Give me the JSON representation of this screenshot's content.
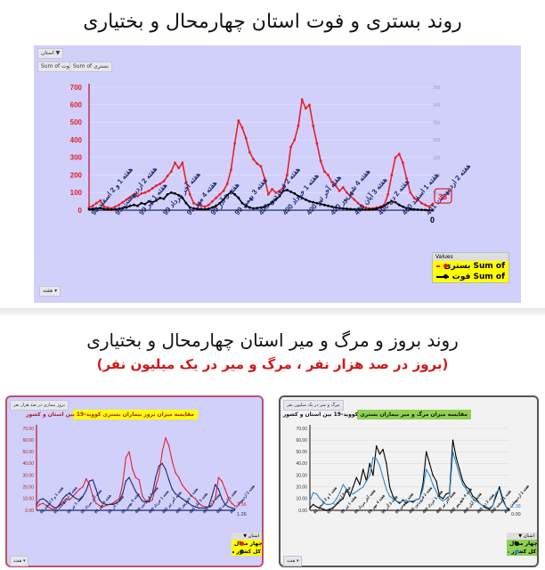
{
  "page": {
    "title_top": "روند بستری و فوت استان چهارمحال و بختیاری",
    "title_bottom": "روند بروز و مرگ و میر استان چهارمحال و بختیاری",
    "subtitle_bottom": "(بروز در صد هزار نفر ، مرگ و میر در یک میلیون نفر)"
  },
  "top_chart": {
    "filter_button": "استان ▼",
    "field_buttons": [
      "Sum of فوت",
      "Sum of بستری"
    ],
    "axis_field_button": "هفته ▾",
    "legend_header": "Values",
    "legend_items": [
      {
        "label": "Sum of بستری",
        "color": "#e8202a"
      },
      {
        "label": "Sum of فوت",
        "color": "#000000"
      }
    ],
    "last_value_label": "36",
    "last_value_secondary": "0",
    "colors": {
      "primary_series": "#e8202a",
      "secondary_series": "#000000",
      "axis_label": "#e8202a",
      "category_label": "#1f2a6b",
      "legend_bg": "#ffff00",
      "panel_bg": "#d0d0fb"
    }
  },
  "bottom_left_chart": {
    "corner_button": "بروز بیماری در صد هزار نفر",
    "title": "مقایسه میزان بروز بیماران بستری کووید-19 بین استان و کشور",
    "legend_header": "استان ▼",
    "legend_items": [
      {
        "label": "چهار محال",
        "color": "#e8202a"
      },
      {
        "label": "کل کشور",
        "color": "#1f2a6b"
      }
    ],
    "axis_field_button": "هفته ▾",
    "end_labels": [
      "3.56",
      "1.26"
    ],
    "colors": {
      "title_bg": "#ffff00",
      "legend_bg": "#ffff00",
      "border": "#c0506a",
      "panel_bg": "#d0d0fb"
    }
  },
  "bottom_right_chart": {
    "corner_button": "مرگ و میر در یک میلیون نفر",
    "title": "مقایسه میزان مرگ و میر بیماران بستری کووید-19 بین استان و کشور",
    "legend_header": "استان ▼",
    "legend_items": [
      {
        "label": "چهار محال",
        "color": "#000000"
      },
      {
        "label": "کل کشور",
        "color": "#2e8bd0"
      }
    ],
    "axis_field_button": "هفته ▾",
    "end_labels": [
      "1.38",
      "0.00"
    ],
    "colors": {
      "title_bg": "#8fd14f",
      "legend_bg": "#8fd14f",
      "border": "#555555",
      "panel_bg": "#f2f2f2"
    }
  },
  "chart_data": [
    {
      "type": "line",
      "title": "روند بستری و فوت استان چهارمحال و بختیاری",
      "xlabel": "هفته",
      "ylabel": "",
      "ylim": [
        0,
        700
      ],
      "y2lim": [
        0,
        350
      ],
      "yticks": [
        0,
        100,
        200,
        300,
        400,
        500,
        600,
        700
      ],
      "y2ticks": [
        0,
        50,
        100,
        150,
        200,
        250,
        300,
        350
      ],
      "grid": true,
      "legend_position": "bottom-right",
      "categories": [
        "هفته 1 و 2 اسفند 98",
        "هفته 2 اردیبهشت 99",
        "هفته 1 تیر 99",
        "هفته آخر مرداد 99",
        "هفته 4 مهر 99",
        "هفته 3 آذر 99",
        "هفته 3 بهمن 99",
        "هفته 2 فروردین 400",
        "هفته 1 خرداد 400",
        "هفته آخر تیر 400",
        "هفته 4 شهریور 400",
        "هفته 3 آبان 400",
        "هفته 2 دی 400",
        "هفته 1 اسفند 400",
        "هفته 2 اردیبهشت 401"
      ],
      "series": [
        {
          "name": "Sum of بستری",
          "axis": "left",
          "values": [
            15,
            25,
            40,
            55,
            20,
            15,
            10,
            20,
            30,
            45,
            60,
            75,
            90,
            80,
            95,
            100,
            110,
            125,
            140,
            150,
            165,
            195,
            220,
            270,
            240,
            270,
            160,
            90,
            40,
            30,
            25,
            20,
            30,
            50,
            70,
            90,
            110,
            150,
            230,
            380,
            510,
            470,
            410,
            330,
            290,
            265,
            250,
            180,
            90,
            120,
            100,
            110,
            130,
            200,
            360,
            400,
            480,
            630,
            580,
            600,
            480,
            380,
            280,
            220,
            200,
            160,
            140,
            110,
            130,
            100,
            80,
            60,
            40,
            20,
            15,
            10,
            10,
            15,
            20,
            30,
            90,
            200,
            300,
            320,
            270,
            180,
            100,
            70,
            60,
            40,
            30,
            20,
            36
          ]
        },
        {
          "name": "Sum of فوت",
          "axis": "left",
          "values": [
            5,
            8,
            10,
            12,
            6,
            4,
            3,
            5,
            8,
            12,
            15,
            25,
            30,
            25,
            40,
            35,
            50,
            45,
            55,
            70,
            65,
            90,
            100,
            95,
            85,
            70,
            40,
            15,
            10,
            8,
            6,
            5,
            8,
            15,
            25,
            40,
            60,
            85,
            105,
            90,
            70,
            40,
            25,
            15,
            10,
            12,
            15,
            20,
            30,
            45,
            60,
            80,
            110,
            115,
            105,
            95,
            80,
            70,
            60,
            50,
            45,
            40,
            35,
            30,
            25,
            20,
            15,
            12,
            10,
            8,
            6,
            5,
            4,
            3,
            3,
            4,
            5,
            8,
            15,
            25,
            40,
            50,
            45,
            30,
            20,
            12,
            8,
            5,
            3,
            2,
            1,
            0,
            0
          ]
        }
      ]
    },
    {
      "type": "line",
      "title": "مقایسه میزان بروز بیماران بستری کووید-19 بین استان و کشور",
      "xlabel": "هفته",
      "ylabel": "بروز بیماری در صد هزار نفر",
      "ylim": [
        0,
        70
      ],
      "yticks": [
        0,
        10,
        20,
        30,
        40,
        50,
        60,
        70
      ],
      "grid": false,
      "legend_position": "bottom-right",
      "categories": [
        "هفته 1 و 2 اسفند 98",
        "هفته 2 اردیبهشت 99",
        "هفته 1 تیر 99",
        "هفته آخر مرداد 99",
        "هفته 4 مهر 99",
        "هفته 3 آذر 99",
        "هفته 3 بهمن 99",
        "هفته 2 فروردین 400",
        "هفته 1 خرداد 400",
        "هفته آخر تیر 400",
        "هفته 4 شهریور 400",
        "هفته 3 آبان 400",
        "هفته 2 دی 400",
        "هفته 1 اسفند 400",
        "هفته 2 اردیبهشت 401"
      ],
      "series": [
        {
          "name": "چهار محال",
          "values": [
            3,
            5,
            6,
            4,
            2,
            1,
            2,
            4,
            7,
            10,
            9,
            12,
            15,
            18,
            20,
            27,
            22,
            12,
            6,
            4,
            3,
            4,
            5,
            6,
            8,
            10,
            22,
            45,
            50,
            35,
            28,
            26,
            12,
            8,
            7,
            9,
            20,
            30,
            50,
            62,
            55,
            42,
            32,
            28,
            22,
            18,
            15,
            12,
            10,
            6,
            4,
            3,
            3,
            4,
            10,
            28,
            25,
            18,
            10,
            6,
            3.56
          ]
        },
        {
          "name": "کل کشور",
          "values": [
            5,
            9,
            10,
            8,
            5,
            3,
            2,
            5,
            10,
            13,
            15,
            12,
            10,
            9,
            12,
            17,
            25,
            26,
            18,
            9,
            6,
            5,
            5,
            5,
            6,
            8,
            14,
            25,
            28,
            22,
            16,
            12,
            8,
            7,
            8,
            14,
            28,
            38,
            40,
            35,
            26,
            18,
            14,
            12,
            10,
            8,
            6,
            4,
            3,
            2,
            2,
            2,
            3,
            12,
            22,
            18,
            10,
            5,
            3,
            2,
            1.26
          ]
        }
      ]
    },
    {
      "type": "line",
      "title": "مقایسه میزان مرگ و میر بیماران بستری کووید-19 بین استان و کشور",
      "xlabel": "هفته",
      "ylabel": "مرگ و میر در یک میلیون نفر",
      "ylim": [
        0,
        70
      ],
      "yticks": [
        0,
        10,
        20,
        30,
        40,
        50,
        60,
        70
      ],
      "grid": true,
      "legend_position": "bottom-right",
      "categories": [
        "هفته 1 و 2 اسفند 98",
        "هفته 2 اردیبهشت 99",
        "هفته 1 تیر 99",
        "هفته آخر مرداد 99",
        "هفته 4 مهر 99",
        "هفته 3 آذر 99",
        "هفته 3 بهمن 99",
        "هفته 2 فروردین 400",
        "هفته 1 خرداد 400",
        "هفته آخر تیر 400",
        "هفته 4 شهریور 400",
        "هفته 3 آبان 400",
        "هفته 2 دی 400",
        "هفته 1 اسفند 400",
        "هفته 2 اردیبهشت 401"
      ],
      "series": [
        {
          "name": "چهار محال",
          "values": [
            2,
            5,
            3,
            2,
            1,
            0,
            1,
            2,
            5,
            8,
            10,
            18,
            12,
            20,
            28,
            22,
            35,
            25,
            40,
            30,
            55,
            48,
            52,
            40,
            20,
            12,
            8,
            6,
            9,
            6,
            8,
            7,
            9,
            10,
            22,
            50,
            40,
            30,
            25,
            12,
            10,
            14,
            15,
            60,
            45,
            35,
            25,
            20,
            18,
            12,
            10,
            6,
            4,
            2,
            1,
            4,
            12,
            20,
            10,
            3,
            0
          ]
        },
        {
          "name": "کل کشور",
          "values": [
            8,
            15,
            14,
            10,
            7,
            5,
            5,
            6,
            10,
            15,
            22,
            18,
            15,
            14,
            16,
            18,
            20,
            25,
            30,
            45,
            44,
            38,
            28,
            18,
            12,
            10,
            8,
            7,
            8,
            7,
            8,
            8,
            9,
            10,
            18,
            35,
            30,
            22,
            16,
            10,
            8,
            10,
            12,
            50,
            40,
            30,
            22,
            18,
            14,
            10,
            8,
            6,
            4,
            3,
            2,
            4,
            15,
            18,
            8,
            3,
            1.38
          ]
        }
      ]
    }
  ]
}
